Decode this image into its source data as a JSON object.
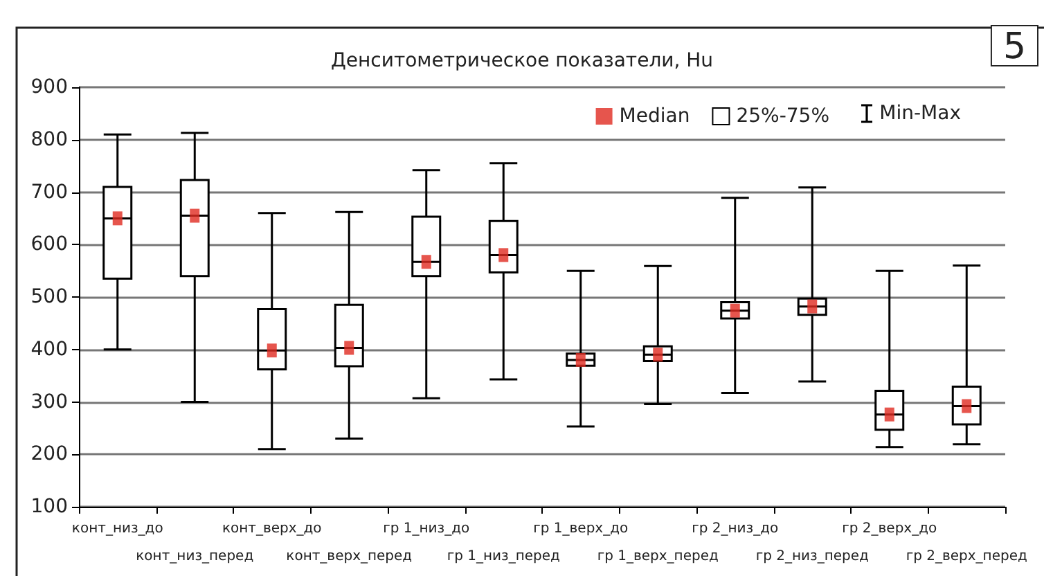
{
  "chart_data": {
    "type": "box",
    "title": "Денситометрическое показатели, Hu",
    "annotations": [
      "Min-Max",
      "5"
    ],
    "categories": [
      "конт_низ_до",
      "конт_низ_перед",
      "конт_верх_до",
      "конт_верх_перед",
      "гр 1_низ_до",
      "гр 1_низ_перед",
      "гр 1_верх_до",
      "гр 1_верх_перед",
      "гр 2_низ_до",
      "гр 2_низ_перед",
      "гр 2_верх_до",
      "гр 2_верх_перед"
    ],
    "series": [
      {
        "name": "Median",
        "type": "scatter",
        "marker": "square",
        "color": "#e02b20",
        "x": [
          "конт_низ_до",
          "конт_низ_перед",
          "конт_верх_до",
          "конт_верх_перед",
          "гр 1_низ_до",
          "гр 1_низ_перед",
          "гр 1_верх_до",
          "гр 1_верх_перед",
          "гр 2_низ_до",
          "гр 2_низ_перед",
          "гр 2_верх_до",
          "гр 2_верх_перед"
        ],
        "values": [
          650,
          655,
          398,
          403,
          567,
          580,
          380,
          390,
          474,
          482,
          276,
          292
        ]
      },
      {
        "name": "25%-75%",
        "color": "#ffffff",
        "boxes": [
          {
            "low": 400,
            "q1": 535,
            "median": 650,
            "q3": 710,
            "high": 810
          },
          {
            "low": 300,
            "q1": 540,
            "median": 655,
            "q3": 723,
            "high": 813
          },
          {
            "low": 210,
            "q1": 362,
            "median": 398,
            "q3": 477,
            "high": 660
          },
          {
            "low": 230,
            "q1": 368,
            "median": 403,
            "q3": 485,
            "high": 662
          },
          {
            "low": 307,
            "q1": 540,
            "median": 567,
            "q3": 653,
            "high": 742
          },
          {
            "low": 343,
            "q1": 547,
            "median": 580,
            "q3": 645,
            "high": 755
          },
          {
            "low": 253,
            "q1": 369,
            "median": 380,
            "q3": 392,
            "high": 550
          },
          {
            "low": 296,
            "q1": 378,
            "median": 390,
            "q3": 406,
            "high": 559
          },
          {
            "low": 317,
            "q1": 459,
            "median": 474,
            "q3": 490,
            "high": 689
          },
          {
            "low": 339,
            "q1": 466,
            "median": 482,
            "q3": 497,
            "high": 709
          },
          {
            "low": 214,
            "q1": 247,
            "median": 276,
            "q3": 321,
            "high": 550
          },
          {
            "low": 219,
            "q1": 257,
            "median": 292,
            "q3": 329,
            "high": 560
          }
        ]
      }
    ],
    "ylim": [
      100,
      900
    ],
    "yticks": [
      100,
      200,
      300,
      400,
      500,
      600,
      700,
      800,
      900
    ],
    "grid": "y",
    "legend": "top right"
  }
}
